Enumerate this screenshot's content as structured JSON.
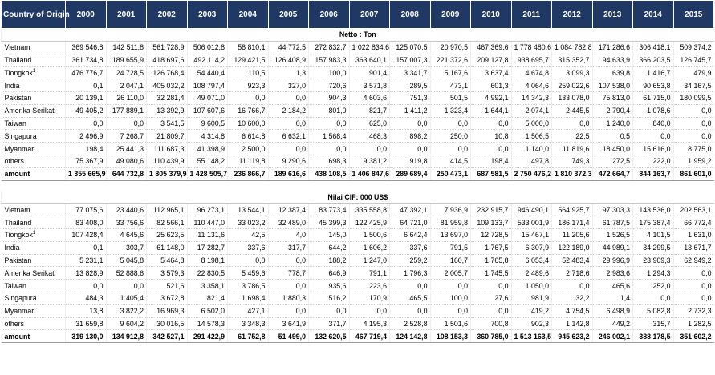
{
  "header": {
    "country_label": "Country of Origin",
    "years": [
      "2000",
      "2001",
      "2002",
      "2003",
      "2004",
      "2005",
      "2006",
      "2007",
      "2008",
      "2009",
      "2010",
      "2011",
      "2012",
      "2013",
      "2014",
      "2015"
    ]
  },
  "sections": [
    {
      "title": "Netto : Ton",
      "rows": [
        {
          "country": "Vietnam",
          "values": [
            "369 546,8",
            "142 511,8",
            "561 728,9",
            "506 012,8",
            "58 810,1",
            "44 772,5",
            "272 832,7",
            "1 022 834,6",
            "125 070,5",
            "20 970,5",
            "467 369,6",
            "1 778 480,6",
            "1 084 782,8",
            "171 286,6",
            "306 418,1",
            "509 374,2"
          ]
        },
        {
          "country": "Thailand",
          "values": [
            "361 734,8",
            "189 655,9",
            "418 697,6",
            "492 114,2",
            "129 421,5",
            "126 408,9",
            "157 983,3",
            "363 640,1",
            "157 007,3",
            "221 372,6",
            "209 127,8",
            "938 695,7",
            "315 352,7",
            "94 633,9",
            "366 203,5",
            "126 745,7"
          ]
        },
        {
          "country": "Tiongkok",
          "sup": "1",
          "values": [
            "476 776,7",
            "24 728,5",
            "126 768,4",
            "54 440,4",
            "110,5",
            "1,3",
            "100,0",
            "901,4",
            "3 341,7",
            "5 167,6",
            "3 637,4",
            "4 674,8",
            "3 099,3",
            "639,8",
            "1 416,7",
            "479,9"
          ]
        },
        {
          "country": "India",
          "values": [
            "0,1",
            "2 047,1",
            "405 032,2",
            "108 797,4",
            "923,3",
            "327,0",
            "720,6",
            "3 571,8",
            "289,5",
            "473,1",
            "601,3",
            "4 064,6",
            "259 022,6",
            "107 538,0",
            "90 653,8",
            "34 167,5"
          ]
        },
        {
          "country": "Pakistan",
          "values": [
            "20 139,1",
            "26 110,0",
            "32 281,4",
            "49 071,0",
            "0,0",
            "0,0",
            "904,3",
            "4 603,6",
            "751,3",
            "501,5",
            "4 992,1",
            "14 342,3",
            "133 078,0",
            "75 813,0",
            "61 715,0",
            "180 099,5"
          ]
        },
        {
          "country": "Amerika Serikat",
          "values": [
            "49 405,2",
            "177 889,1",
            "13 392,9",
            "107 607,6",
            "16 766,7",
            "2 184,2",
            "801,0",
            "821,7",
            "1 411,2",
            "1 323,4",
            "1 644,1",
            "2 074,1",
            "2 445,5",
            "2 790,4",
            "1 078,6",
            "0,0"
          ]
        },
        {
          "country": "Taiwan",
          "values": [
            "0,0",
            "0,0",
            "3 541,5",
            "9 600,5",
            "10 600,0",
            "0,0",
            "0,0",
            "625,0",
            "0,0",
            "0,0",
            "0,0",
            "5 000,0",
            "0,0",
            "1 240,0",
            "840,0",
            "0,0"
          ]
        },
        {
          "country": "Singapura",
          "values": [
            "2 496,9",
            "7 268,7",
            "21 809,7",
            "4 314,8",
            "6 614,8",
            "6 632,1",
            "1 568,4",
            "468,3",
            "898,2",
            "250,0",
            "10,8",
            "1 506,5",
            "22,5",
            "0,5",
            "0,0",
            "0,0"
          ]
        },
        {
          "country": "Myanmar",
          "values": [
            "198,4",
            "25 441,3",
            "111 687,3",
            "41 398,9",
            "2 500,0",
            "0,0",
            "0,0",
            "0,0",
            "0,0",
            "0,0",
            "0,0",
            "1 140,0",
            "11 819,6",
            "18 450,0",
            "15 616,0",
            "8 775,0"
          ]
        },
        {
          "country": "others",
          "values": [
            "75 367,9",
            "49 080,6",
            "110 439,9",
            "55 148,2",
            "11 119,8",
            "9 290,6",
            "698,3",
            "9 381,2",
            "919,8",
            "414,5",
            "198,4",
            "497,8",
            "749,3",
            "272,5",
            "222,0",
            "1 959,2"
          ]
        }
      ],
      "total": {
        "country": "amount",
        "values": [
          "1 355 665,9",
          "644 732,8",
          "1 805 379,9",
          "1 428 505,7",
          "236 866,7",
          "189 616,6",
          "438 108,5",
          "1 406 847,6",
          "289 689,4",
          "250 473,1",
          "687 581,5",
          "2 750 476,2",
          "1 810 372,3",
          "472 664,7",
          "844 163,7",
          "861 601,0"
        ]
      }
    },
    {
      "title": "Nilai CIF: 000 US$",
      "rows": [
        {
          "country": "Vietnam",
          "values": [
            "77 075,6",
            "23 440,6",
            "112 965,1",
            "96 273,1",
            "13 544,1",
            "12 387,4",
            "83 773,4",
            "335 558,8",
            "47 392,1",
            "7 936,9",
            "232 915,7",
            "946 490,1",
            "564 925,7",
            "97 303,3",
            "143 536,0",
            "202 563,1"
          ]
        },
        {
          "country": "Thailand",
          "values": [
            "83 408,0",
            "33 756,6",
            "82 566,1",
            "110 447,0",
            "33 023,2",
            "32 489,0",
            "45 399,3",
            "122 425,9",
            "64 721,0",
            "81 959,8",
            "109 133,7",
            "533 001,9",
            "186 171,4",
            "61 787,5",
            "175 387,4",
            "66 772,4"
          ]
        },
        {
          "country": "Tiongkok",
          "sup": "1",
          "values": [
            "107 428,4",
            "4 645,6",
            "25 623,5",
            "11 131,6",
            "42,5",
            "4,0",
            "145,0",
            "1 500,6",
            "6 642,4",
            "13 697,0",
            "12 728,5",
            "15 467,1",
            "11 205,6",
            "1 526,5",
            "4 101,5",
            "1 631,0"
          ]
        },
        {
          "country": "India",
          "values": [
            "0,1",
            "303,7",
            "61 148,0",
            "17 282,7",
            "337,6",
            "317,7",
            "644,2",
            "1 606,2",
            "337,6",
            "791,5",
            "1 767,5",
            "6 307,9",
            "122 189,0",
            "44 989,1",
            "34 299,5",
            "13 671,7"
          ]
        },
        {
          "country": "Pakistan",
          "values": [
            "5 231,1",
            "5 045,8",
            "5 464,8",
            "8 198,1",
            "0,0",
            "0,0",
            "188,2",
            "1 247,0",
            "259,2",
            "160,7",
            "1 765,8",
            "6 053,4",
            "52 483,4",
            "29 996,9",
            "23 909,3",
            "62 949,2"
          ]
        },
        {
          "country": "Amerika Serikat",
          "values": [
            "13 828,9",
            "52 888,6",
            "3 579,3",
            "22 830,5",
            "5 459,6",
            "778,7",
            "646,9",
            "791,1",
            "1 796,3",
            "2 005,7",
            "1 745,5",
            "2 489,6",
            "2 718,6",
            "2 983,6",
            "1 294,3",
            "0,0"
          ]
        },
        {
          "country": "Taiwan",
          "values": [
            "0,0",
            "0,0",
            "521,6",
            "3 358,1",
            "3 786,5",
            "0,0",
            "935,6",
            "223,6",
            "0,0",
            "0,0",
            "0,0",
            "1 050,0",
            "0,0",
            "465,6",
            "252,0",
            "0,0"
          ]
        },
        {
          "country": "Singapura",
          "values": [
            "484,3",
            "1 405,4",
            "3 672,8",
            "821,4",
            "1 698,4",
            "1 880,3",
            "516,2",
            "170,9",
            "465,5",
            "100,0",
            "27,6",
            "981,9",
            "32,2",
            "1,4",
            "0,0",
            "0,0"
          ]
        },
        {
          "country": "Myanmar",
          "values": [
            "13,8",
            "3 822,2",
            "16 969,3",
            "6 502,0",
            "427,1",
            "0,0",
            "0,0",
            "0,0",
            "0,0",
            "0,0",
            "0,0",
            "419,2",
            "4 754,5",
            "6 498,9",
            "5 082,8",
            "2 732,3"
          ]
        },
        {
          "country": "others",
          "values": [
            "31 659,8",
            "9 604,2",
            "30 016,5",
            "14 578,3",
            "3 348,3",
            "3 641,9",
            "371,7",
            "4 195,3",
            "2 528,8",
            "1 501,6",
            "700,8",
            "902,3",
            "1 142,8",
            "449,2",
            "315,7",
            "1 282,5"
          ]
        }
      ],
      "total": {
        "country": "amount",
        "values": [
          "319 130,0",
          "134 912,8",
          "342 527,1",
          "291 422,9",
          "61 752,8",
          "51 499,0",
          "132 620,5",
          "467 719,4",
          "124 142,8",
          "108 153,3",
          "360 785,0",
          "1 513 163,5",
          "945 623,2",
          "246 002,1",
          "388 178,5",
          "351 602,2"
        ]
      }
    }
  ]
}
